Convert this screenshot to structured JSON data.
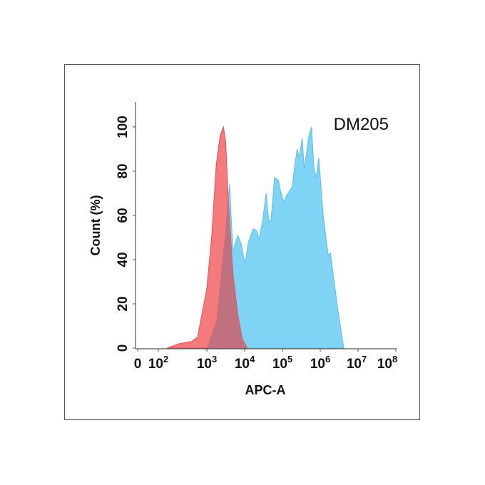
{
  "chart_data": {
    "type": "area",
    "title": "DM205",
    "xlabel": "APC-A",
    "ylabel": "Count  (%)",
    "xscale": "biexponential (log)",
    "ylim": [
      0,
      110
    ],
    "xlim": [
      0,
      100000000
    ],
    "grid": false,
    "yticks": [
      0,
      20,
      40,
      60,
      80,
      100
    ],
    "xticks": [
      {
        "value": 0,
        "base": "0",
        "exp": ""
      },
      {
        "value": 100,
        "base": "10",
        "exp": "2"
      },
      {
        "value": 1000,
        "base": "10",
        "exp": "3"
      },
      {
        "value": 10000,
        "base": "10",
        "exp": "4"
      },
      {
        "value": 100000,
        "base": "10",
        "exp": "5"
      },
      {
        "value": 1000000,
        "base": "10",
        "exp": "6"
      },
      {
        "value": 10000000,
        "base": "10",
        "exp": "7"
      },
      {
        "value": 100000000,
        "base": "10",
        "exp": "8"
      }
    ],
    "series": [
      {
        "color": "#7fd3f5",
        "x": [
          1000,
          1778,
          2570,
          3162,
          3981,
          4898,
          6607,
          8128,
          10233,
          12589,
          16982,
          20893,
          23988,
          30200,
          37154,
          43652,
          50119,
          61660,
          77625,
          89125,
          109648,
          128825,
          181970,
          213796,
          245471,
          281838,
          331131,
          380189,
          501187,
          588844,
          676083,
          776247,
          912011,
          1047129,
          1202264,
          1621810,
          1862087,
          2137962,
          2884032,
          4168694
        ],
        "y": [
          0,
          12,
          39,
          55,
          74,
          44,
          51,
          47,
          38,
          48,
          54,
          53,
          49,
          58,
          70,
          57,
          58,
          77,
          76,
          71,
          66,
          69,
          73,
          83,
          90,
          86,
          95,
          81,
          96,
          100,
          82,
          77,
          86,
          73,
          60,
          42,
          43,
          35,
          18,
          0
        ]
      },
      {
        "color": "#f47a7c",
        "x": [
          151,
          269,
          490,
          646,
          741,
          1000,
          1349,
          1778,
          2239,
          2754,
          3162,
          3715,
          4898,
          6607,
          8710,
          11749
        ],
        "y": [
          0,
          2,
          3,
          5,
          12,
          27,
          51,
          83,
          96,
          100,
          93,
          66,
          34,
          15,
          4,
          0
        ]
      }
    ],
    "overlap_color": "#c0707e"
  }
}
